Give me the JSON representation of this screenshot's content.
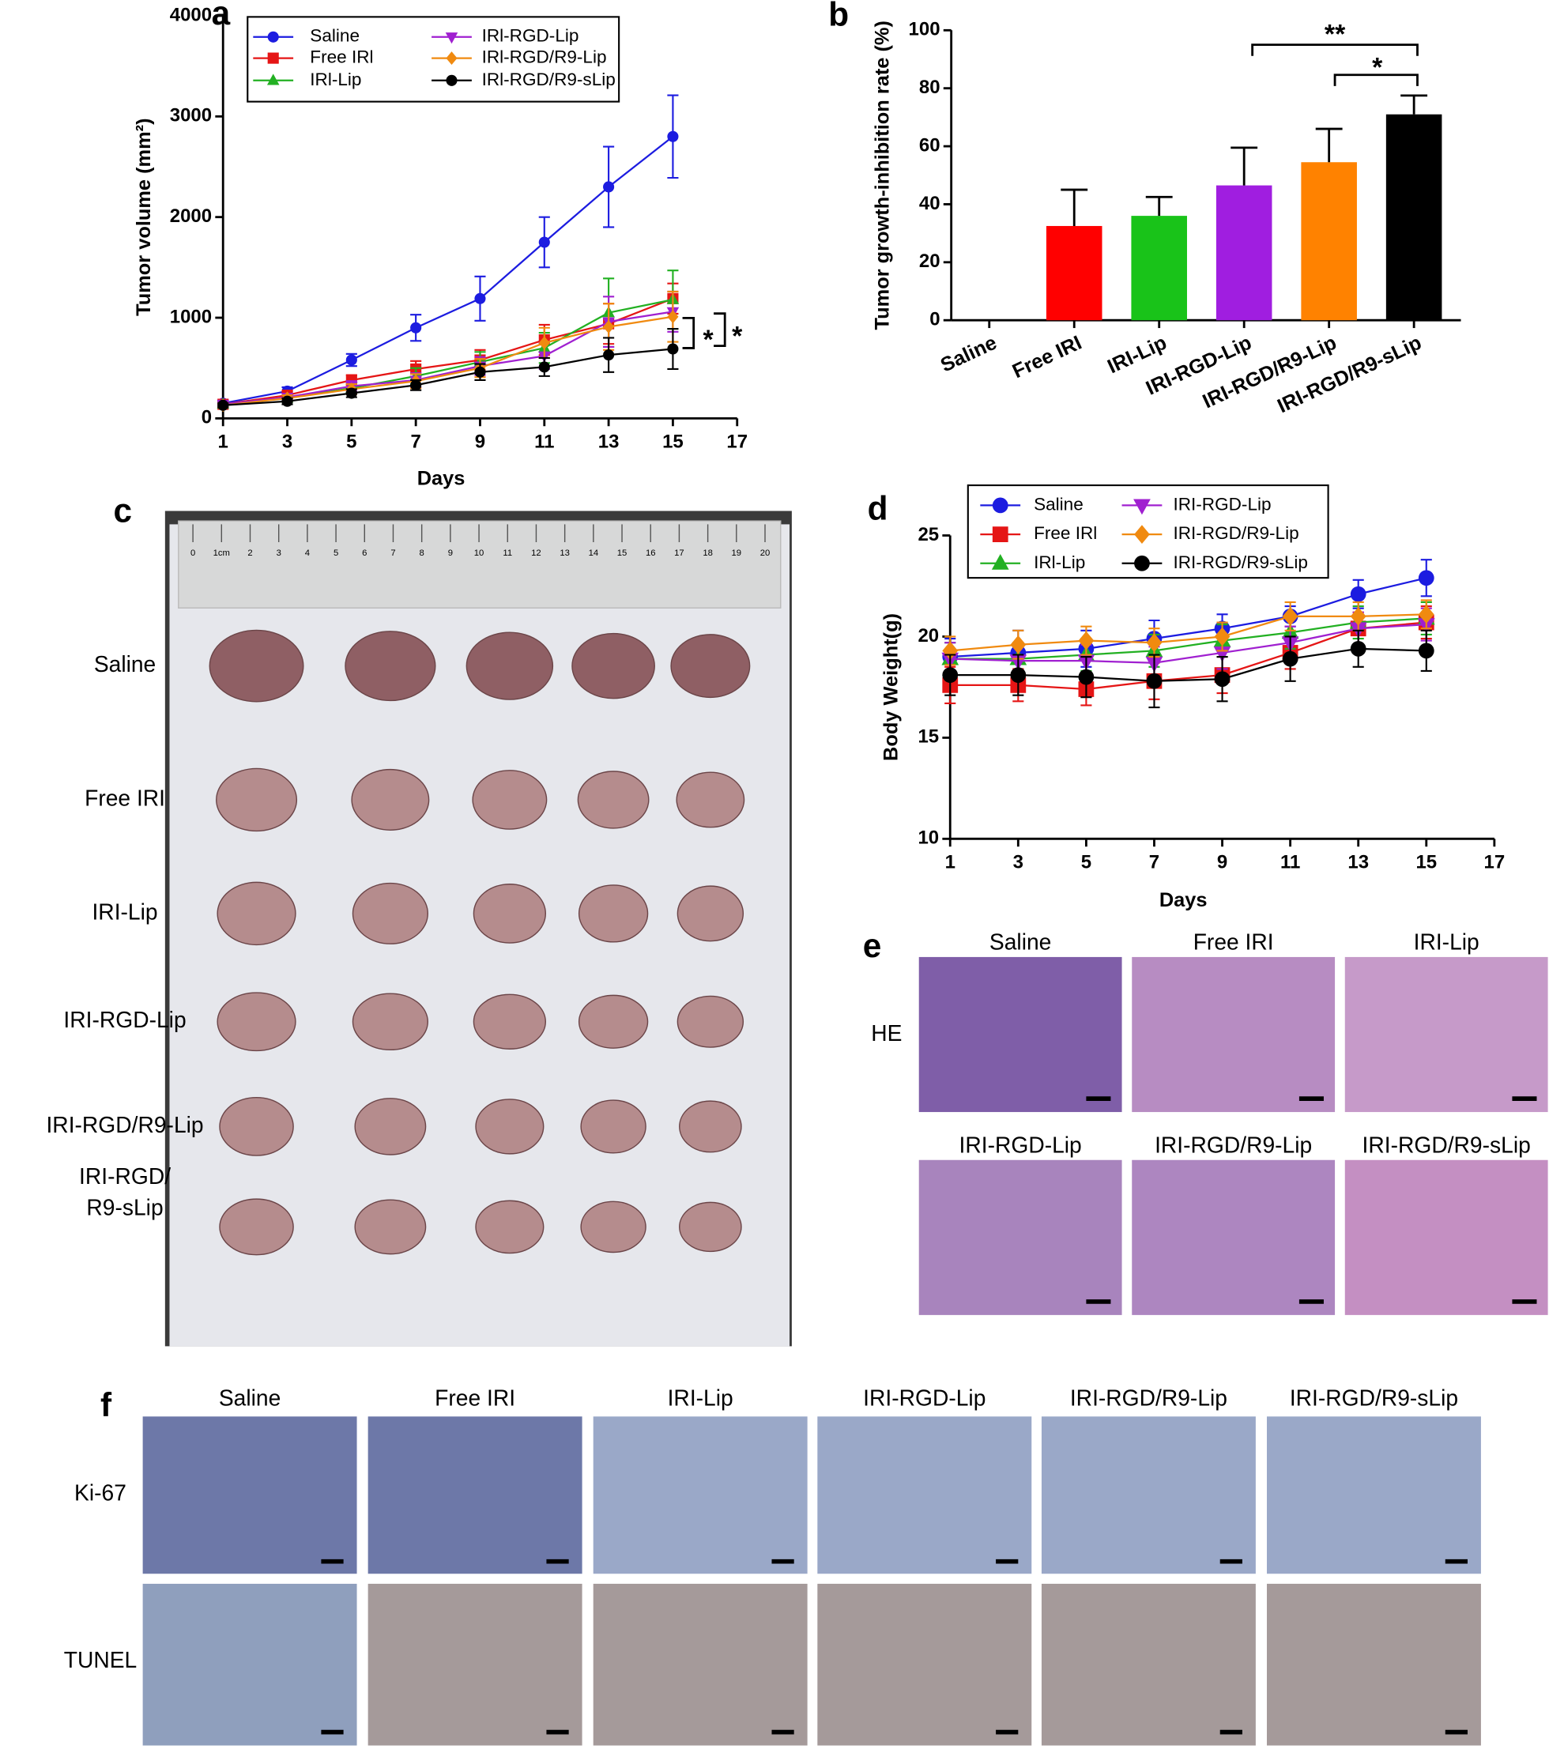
{
  "chart_data": [
    {
      "type": "line",
      "panel": "a",
      "ylabel": "Tumor volume (mm²)",
      "xlabel": "Days",
      "x": [
        1,
        3,
        5,
        7,
        9,
        11,
        13,
        15
      ],
      "xlim": [
        1,
        17
      ],
      "xticks": [
        1,
        3,
        5,
        7,
        9,
        11,
        13,
        15,
        17
      ],
      "ylim": [
        0,
        4000
      ],
      "yticks": [
        0,
        1000,
        2000,
        3000,
        4000
      ],
      "grid": false,
      "series": [
        {
          "name": "Saline",
          "color": "#1c1ce0",
          "marker": "circle",
          "values": [
            150,
            270,
            580,
            900,
            1190,
            1750,
            2300,
            2800
          ],
          "errors": [
            20,
            40,
            60,
            130,
            220,
            250,
            400,
            410
          ]
        },
        {
          "name": "Free IRl",
          "color": "#e51515",
          "marker": "square",
          "values": [
            140,
            230,
            380,
            490,
            580,
            780,
            940,
            1190
          ],
          "errors": [
            20,
            40,
            50,
            80,
            100,
            150,
            200,
            150
          ]
        },
        {
          "name": "IRl-Lip",
          "color": "#22b022",
          "marker": "triangle",
          "values": [
            140,
            200,
            300,
            420,
            560,
            700,
            1050,
            1180
          ],
          "errors": [
            20,
            30,
            50,
            80,
            100,
            150,
            340,
            290
          ]
        },
        {
          "name": "IRl-RGD-Lip",
          "color": "#a020d0",
          "marker": "triangle-down",
          "values": [
            140,
            210,
            320,
            380,
            520,
            620,
            960,
            1060
          ],
          "errors": [
            20,
            30,
            50,
            70,
            90,
            130,
            250,
            200
          ]
        },
        {
          "name": "IRl-RGD/R9-Lip",
          "color": "#f08a10",
          "marker": "diamond",
          "values": [
            130,
            200,
            290,
            370,
            500,
            750,
            910,
            1010
          ],
          "errors": [
            20,
            30,
            50,
            70,
            90,
            150,
            230,
            250
          ]
        },
        {
          "name": "IRl-RGD/R9-sLip",
          "color": "#000000",
          "marker": "circle",
          "values": [
            130,
            170,
            250,
            330,
            460,
            510,
            630,
            690
          ],
          "errors": [
            20,
            30,
            40,
            50,
            80,
            90,
            170,
            200
          ]
        }
      ],
      "annotations": [
        "*",
        "*"
      ]
    },
    {
      "type": "bar",
      "panel": "b",
      "ylabel": "Tumor growth-inhibition rate (%)",
      "categories": [
        "Saline",
        "Free IRI",
        "IRI-Lip",
        "IRI-RGD-Lip",
        "IRI-RGD/R9-Lip",
        "IRI-RGD/R9-sLip"
      ],
      "values": [
        0,
        32.5,
        36,
        46.5,
        54.5,
        71
      ],
      "errors": [
        null,
        12.5,
        6.5,
        13,
        11.5,
        6.5
      ],
      "colors": [
        "#1c1ce0",
        "#ff0000",
        "#19c319",
        "#a01ee0",
        "#ff8200",
        "#000000"
      ],
      "ylim": [
        0,
        100
      ],
      "yticks": [
        0,
        20,
        40,
        60,
        80,
        100
      ],
      "grid": false,
      "annotations": [
        "**",
        "*"
      ]
    },
    {
      "type": "line",
      "panel": "d",
      "ylabel": "Body Weight(g)",
      "xlabel": "Days",
      "x": [
        1,
        3,
        5,
        7,
        9,
        11,
        13,
        15
      ],
      "xlim": [
        1,
        17
      ],
      "xticks": [
        1,
        3,
        5,
        7,
        9,
        11,
        13,
        15,
        17
      ],
      "ylim": [
        10,
        25
      ],
      "yticks": [
        10,
        15,
        20,
        25
      ],
      "grid": false,
      "series": [
        {
          "name": "Saline",
          "color": "#1c1ce0",
          "marker": "circle",
          "values": [
            19.0,
            19.2,
            19.4,
            19.9,
            20.4,
            21.0,
            22.1,
            22.9
          ],
          "errors": [
            0.9,
            1.1,
            0.9,
            0.9,
            0.7,
            0.5,
            0.7,
            0.9
          ]
        },
        {
          "name": "Free IRl",
          "color": "#e51515",
          "marker": "square",
          "values": [
            17.6,
            17.6,
            17.4,
            17.8,
            18.1,
            19.2,
            20.4,
            20.7
          ],
          "errors": [
            0.9,
            0.8,
            0.8,
            0.9,
            0.9,
            0.8,
            0.8,
            0.8
          ]
        },
        {
          "name": "IRl-Lip",
          "color": "#22b022",
          "marker": "triangle",
          "values": [
            18.9,
            18.9,
            19.1,
            19.3,
            19.8,
            20.2,
            20.7,
            20.9
          ],
          "errors": [
            0.8,
            0.8,
            0.8,
            0.8,
            0.8,
            0.8,
            0.8,
            0.8
          ]
        },
        {
          "name": "IRI-RGD-Lip",
          "color": "#a020d0",
          "marker": "triangle-down",
          "values": [
            18.9,
            18.8,
            18.8,
            18.7,
            19.2,
            19.7,
            20.4,
            20.6
          ],
          "errors": [
            0.8,
            0.8,
            0.8,
            0.8,
            0.8,
            0.8,
            0.8,
            0.8
          ]
        },
        {
          "name": "IRI-RGD/R9-Lip",
          "color": "#f08a10",
          "marker": "diamond",
          "values": [
            19.3,
            19.6,
            19.8,
            19.7,
            20.0,
            21.0,
            21.0,
            21.1
          ],
          "errors": [
            0.7,
            0.7,
            0.7,
            0.7,
            0.7,
            0.7,
            0.7,
            0.7
          ]
        },
        {
          "name": "IRI-RGD/R9-sLip",
          "color": "#000000",
          "marker": "circle",
          "values": [
            18.1,
            18.1,
            18.0,
            17.8,
            17.9,
            18.9,
            19.4,
            19.3
          ],
          "errors": [
            1.0,
            1.0,
            1.0,
            1.3,
            1.1,
            1.1,
            0.9,
            1.0
          ]
        }
      ]
    }
  ],
  "panels": {
    "c": {
      "label": "c",
      "ruler": [
        "0",
        "1cm",
        "2",
        "3",
        "4",
        "5",
        "6",
        "7",
        "8",
        "9",
        "10",
        "11",
        "12",
        "13",
        "14",
        "15",
        "16",
        "17",
        "18",
        "19",
        "20"
      ],
      "rows": [
        [
          "Saline"
        ],
        [
          "Free IRI"
        ],
        [
          "IRI-Lip"
        ],
        [
          "IRI-RGD-Lip"
        ],
        [
          "IRI-RGD/R9-Lip"
        ],
        [
          "IRI-RGD/",
          "R9-sLip"
        ]
      ]
    },
    "e": {
      "label": "e",
      "row_label": "HE",
      "titles": [
        "Saline",
        "Free IRI",
        "IRI-Lip",
        "IRI-RGD-Lip",
        "IRI-RGD/R9-Lip",
        "IRI-RGD/R9-sLip"
      ]
    },
    "f": {
      "label": "f",
      "columns": [
        "Saline",
        "Free IRI",
        "IRI-Lip",
        "IRI-RGD-Lip",
        "IRI-RGD/R9-Lip",
        "IRI-RGD/R9-sLip"
      ],
      "rows": [
        "Ki-67",
        "TUNEL"
      ]
    }
  }
}
